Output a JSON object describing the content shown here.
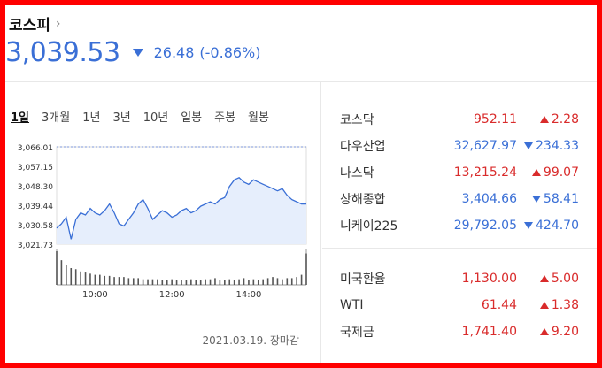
{
  "header": {
    "title": "코스피",
    "price": "3,039.53",
    "change": "26.48",
    "change_pct": "(-0.86%)"
  },
  "tabs": [
    {
      "label": "1일",
      "active": true
    },
    {
      "label": "3개월"
    },
    {
      "label": "1년"
    },
    {
      "label": "3년"
    },
    {
      "label": "10년"
    },
    {
      "label": "일봉"
    },
    {
      "label": "주봉"
    },
    {
      "label": "월봉"
    }
  ],
  "footer": {
    "date": "2021.03.19. 장마감"
  },
  "indices": [
    {
      "name": "코스닥",
      "value": "952.11",
      "change": "2.28",
      "dir": "up"
    },
    {
      "name": "다우산업",
      "value": "32,627.97",
      "change": "234.33",
      "dir": "down"
    },
    {
      "name": "나스닥",
      "value": "13,215.24",
      "change": "99.07",
      "dir": "up"
    },
    {
      "name": "상해종합",
      "value": "3,404.66",
      "change": "58.41",
      "dir": "down"
    },
    {
      "name": "니케이225",
      "value": "29,792.05",
      "change": "424.70",
      "dir": "down"
    }
  ],
  "fx": [
    {
      "name": "미국환율",
      "value": "1,130.00",
      "change": "5.00",
      "dir": "up"
    },
    {
      "name": "WTI",
      "value": "61.44",
      "change": "1.38",
      "dir": "up"
    },
    {
      "name": "국제금",
      "value": "1,741.40",
      "change": "9.20",
      "dir": "up"
    }
  ],
  "colors": {
    "up": "#d92b2b",
    "down": "#3a6fd6",
    "line": "#3a6fd6",
    "fill": "#e6eefc"
  },
  "chart_data": {
    "type": "line",
    "y_ticks": [
      "3,066.01",
      "3,057.15",
      "3,048.30",
      "3,039.44",
      "3,030.58",
      "3,021.73"
    ],
    "x_ticks": [
      "10:00",
      "12:00",
      "14:00"
    ],
    "ylim": [
      3021.73,
      3066.01
    ],
    "x_range": [
      "09:00",
      "15:30"
    ],
    "series": [
      {
        "values": [
          3029,
          3031,
          3034,
          3024,
          3033,
          3036,
          3035,
          3038,
          3036,
          3035,
          3037,
          3040,
          3036,
          3031,
          3030,
          3033,
          3036,
          3040,
          3042,
          3038,
          3033,
          3035,
          3037,
          3036,
          3034,
          3035,
          3037,
          3038,
          3036,
          3037,
          3039,
          3040,
          3041,
          3040,
          3042,
          3043,
          3048,
          3051,
          3052,
          3050,
          3049,
          3051,
          3050,
          3049,
          3048,
          3047,
          3046,
          3047,
          3044,
          3042,
          3041,
          3040,
          3040
        ]
      }
    ],
    "volume": [
      30,
      22,
      18,
      15,
      14,
      12,
      11,
      10,
      9,
      9,
      8,
      8,
      7,
      7,
      7,
      6,
      6,
      6,
      5,
      5,
      5,
      5,
      4,
      4,
      5,
      4,
      4,
      4,
      5,
      4,
      4,
      5,
      5,
      6,
      4,
      4,
      5,
      4,
      5,
      6,
      4,
      5,
      4,
      5,
      6,
      7,
      6,
      5,
      6,
      6,
      7,
      9,
      28
    ]
  }
}
